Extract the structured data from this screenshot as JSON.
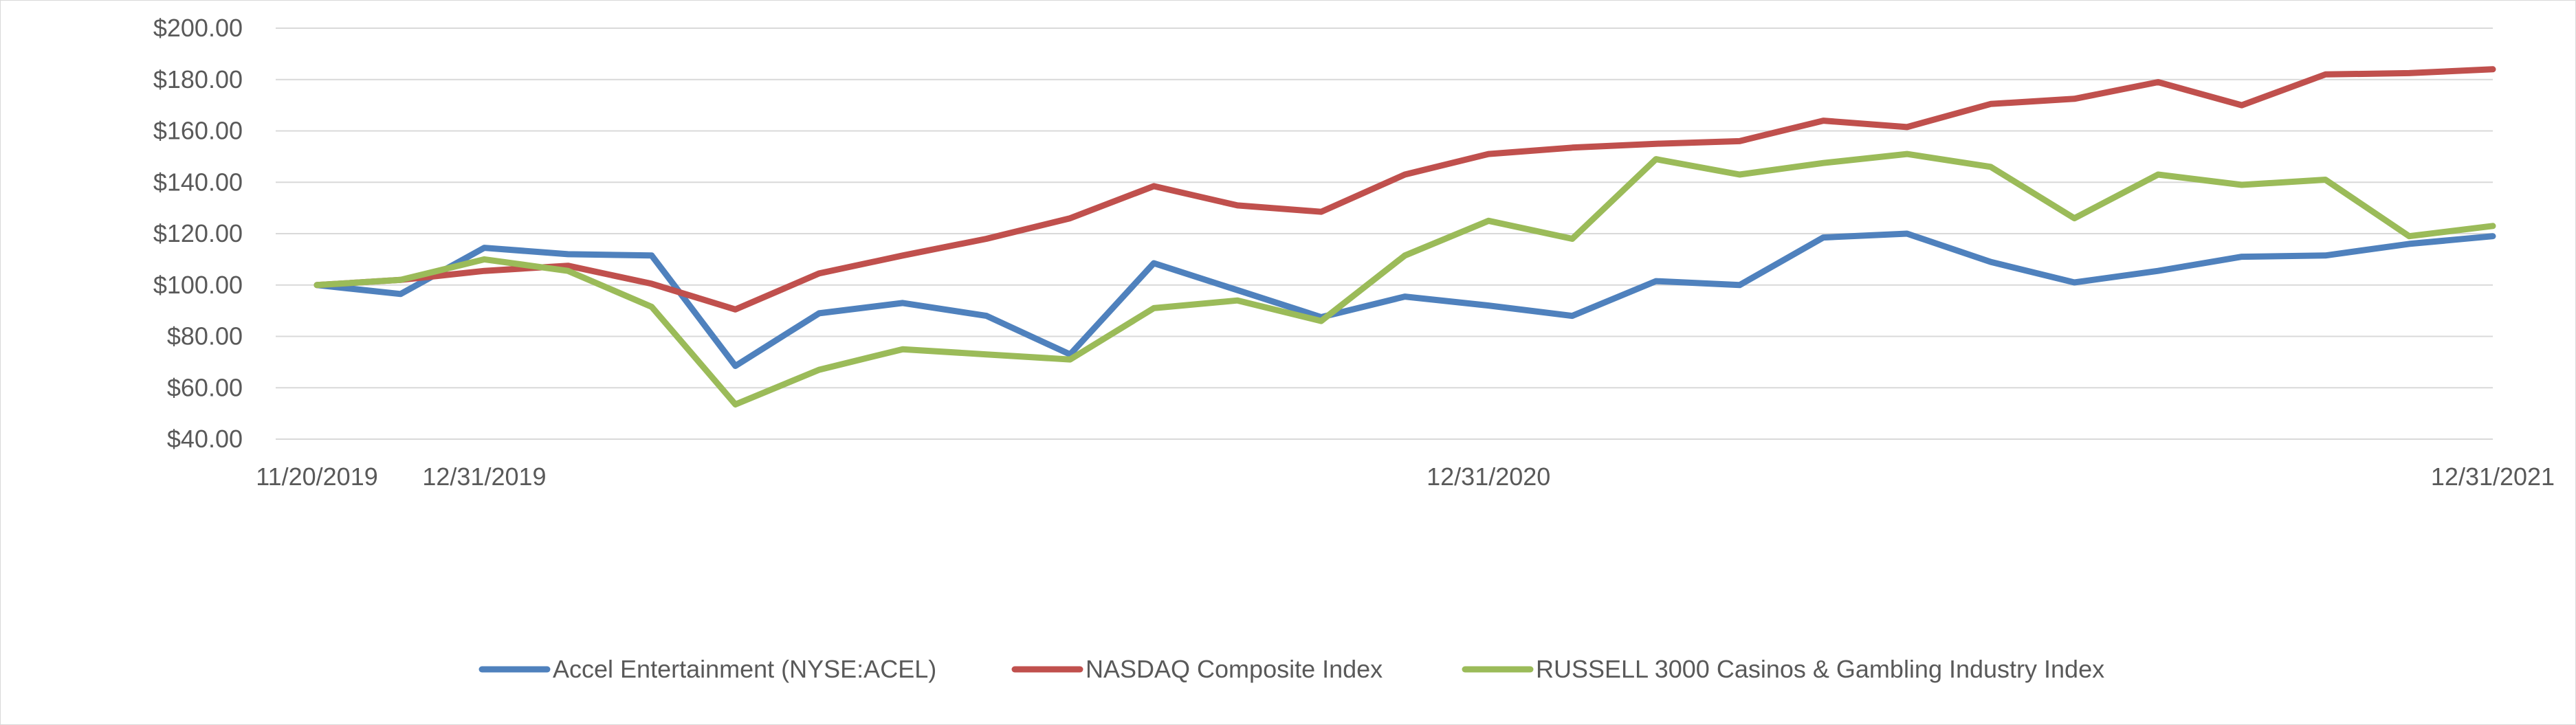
{
  "chart_data": {
    "type": "line",
    "title": "",
    "xlabel": "",
    "ylabel": "",
    "ylim": [
      40,
      200
    ],
    "y_ticks": [
      40,
      60,
      80,
      100,
      120,
      140,
      160,
      180,
      200
    ],
    "y_tick_labels": [
      "$40.00",
      "$60.00",
      "$80.00",
      "$100.00",
      "$120.00",
      "$140.00",
      "$160.00",
      "$180.00",
      "$200.00"
    ],
    "x_tick_labels": [
      {
        "index": 0,
        "label": "11/20/2019"
      },
      {
        "index": 2,
        "label": "12/31/2019"
      },
      {
        "index": 14,
        "label": "12/31/2020"
      },
      {
        "index": 26,
        "label": "12/31/2021"
      }
    ],
    "grid": true,
    "legend_position": "bottom",
    "series": [
      {
        "name": "Accel Entertainment (NYSE:ACEL)",
        "color": "#4f81bd",
        "values": [
          100,
          96.5,
          114.5,
          112,
          111.5,
          68.5,
          89,
          93,
          88,
          73,
          108.5,
          98,
          87.5,
          95.5,
          92,
          88,
          101.5,
          100,
          118.5,
          120,
          109,
          101,
          105.5,
          111,
          111.5,
          116,
          119
        ]
      },
      {
        "name": "NASDAQ Composite Index",
        "color": "#c0504d",
        "values": [
          100,
          102,
          105.5,
          107.5,
          100.5,
          90.5,
          104.5,
          111.5,
          118,
          126,
          138.5,
          131,
          128.5,
          143,
          151,
          153.5,
          155,
          156,
          164,
          161.5,
          170.5,
          172.5,
          179,
          170,
          182,
          182.5,
          184
        ]
      },
      {
        "name": "RUSSELL 3000 Casinos & Gambling Industry Index",
        "color": "#9bbb59",
        "values": [
          100,
          102,
          110,
          105.5,
          91.5,
          53.5,
          67,
          75,
          73,
          71,
          91,
          94,
          86,
          111.5,
          125,
          118,
          149,
          143,
          147.5,
          151,
          146,
          126,
          143,
          139,
          141,
          119,
          123
        ]
      }
    ]
  }
}
